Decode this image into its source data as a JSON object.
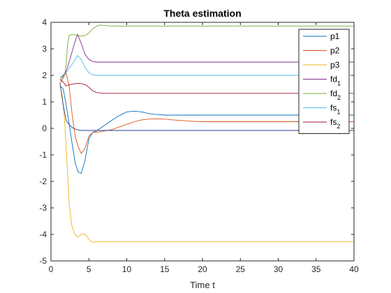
{
  "chart_data": {
    "type": "line",
    "title": "Theta estimation",
    "xlabel": "Time t",
    "ylabel": "",
    "xlim": [
      0,
      40
    ],
    "ylim": [
      -5,
      4
    ],
    "xticks": [
      0,
      5,
      10,
      15,
      20,
      25,
      30,
      35,
      40
    ],
    "yticks": [
      -5,
      -4,
      -3,
      -2,
      -1,
      0,
      1,
      2,
      3,
      4
    ],
    "grid": false,
    "legend_position": "top-right",
    "series": [
      {
        "name": "p1",
        "label_main": "p1",
        "label_sub": "",
        "color": "#0072BD",
        "x": [
          1.2,
          1.6,
          2.0,
          2.4,
          2.8,
          3.2,
          3.6,
          4.0,
          4.5,
          5.0,
          5.5,
          6.0,
          6.5,
          7.0,
          8.0,
          9.0,
          10.0,
          11.0,
          12.0,
          13.0,
          14.0,
          15.0,
          17.0,
          20.0,
          25.0,
          30.0,
          35.0,
          40.0
        ],
        "y": [
          1.6,
          1.5,
          0.9,
          0.2,
          -0.6,
          -1.3,
          -1.65,
          -1.7,
          -1.2,
          -0.4,
          -0.15,
          -0.1,
          0.0,
          0.1,
          0.3,
          0.48,
          0.62,
          0.65,
          0.62,
          0.55,
          0.52,
          0.5,
          0.5,
          0.5,
          0.5,
          0.5,
          0.5,
          0.5
        ]
      },
      {
        "name": "p2",
        "label_main": "p2",
        "label_sub": "",
        "color": "#D95319",
        "x": [
          1.2,
          1.6,
          2.0,
          2.4,
          2.8,
          3.2,
          3.6,
          4.0,
          4.5,
          5.0,
          5.5,
          6.0,
          7.0,
          8.0,
          9.0,
          10.0,
          11.0,
          12.0,
          13.0,
          14.0,
          15.0,
          16.0,
          18.0,
          20.0,
          25.0,
          30.0,
          35.0,
          40.0
        ],
        "y": [
          1.7,
          1.9,
          2.1,
          1.6,
          0.5,
          -0.3,
          -0.7,
          -0.95,
          -0.75,
          -0.3,
          -0.15,
          -0.15,
          -0.1,
          -0.05,
          0.05,
          0.15,
          0.25,
          0.32,
          0.35,
          0.36,
          0.35,
          0.32,
          0.28,
          0.25,
          0.25,
          0.25,
          0.25,
          0.25
        ]
      },
      {
        "name": "p3",
        "label_main": "p3",
        "label_sub": "",
        "color": "#EDB120",
        "x": [
          1.2,
          1.5,
          1.8,
          2.1,
          2.4,
          2.7,
          3.0,
          3.3,
          3.6,
          4.0,
          4.4,
          4.8,
          5.2,
          5.6,
          6.0,
          7.0,
          8.0,
          10.0,
          15.0,
          20.0,
          25.0,
          30.0,
          35.0,
          40.0
        ],
        "y": [
          1.6,
          1.2,
          0.3,
          -1.2,
          -2.8,
          -3.6,
          -3.9,
          -4.05,
          -4.1,
          -4.0,
          -3.98,
          -4.1,
          -4.25,
          -4.3,
          -4.28,
          -4.27,
          -4.27,
          -4.27,
          -4.27,
          -4.27,
          -4.27,
          -4.27,
          -4.27,
          -4.27
        ]
      },
      {
        "name": "fd_1",
        "label_main": "fd",
        "label_sub": "1",
        "color": "#7E2F8E",
        "x": [
          1.2,
          1.6,
          2.0,
          2.5,
          3.0,
          3.5,
          4.0,
          4.5,
          5.0,
          5.5,
          6.0,
          7.0,
          8.0,
          10.0,
          15.0,
          20.0,
          25.0,
          30.0,
          35.0,
          40.0
        ],
        "y": [
          1.9,
          2.0,
          2.15,
          2.6,
          3.1,
          3.55,
          3.2,
          2.8,
          2.6,
          2.52,
          2.5,
          2.5,
          2.5,
          2.5,
          2.5,
          2.5,
          2.5,
          2.5,
          2.5,
          2.5
        ]
      },
      {
        "name": "fd_2",
        "label_main": "fd",
        "label_sub": "2",
        "color": "#77AC30",
        "x": [
          1.2,
          1.5,
          1.8,
          2.0,
          2.2,
          2.4,
          2.8,
          3.2,
          3.6,
          4.0,
          4.5,
          5.0,
          5.5,
          6.0,
          6.5,
          7.0,
          8.0,
          10.0,
          15.0,
          20.0,
          25.0,
          30.0,
          35.0,
          40.0
        ],
        "y": [
          1.9,
          1.95,
          2.0,
          2.4,
          3.2,
          3.5,
          3.55,
          3.52,
          3.5,
          3.48,
          3.5,
          3.6,
          3.75,
          3.85,
          3.9,
          3.88,
          3.86,
          3.86,
          3.86,
          3.86,
          3.86,
          3.86,
          3.86,
          3.86
        ]
      },
      {
        "name": "fs_1",
        "label_main": "fs",
        "label_sub": "1",
        "color": "#4DBEEE",
        "x": [
          1.2,
          1.6,
          2.0,
          2.5,
          3.0,
          3.5,
          4.0,
          4.5,
          5.0,
          5.5,
          6.0,
          7.0,
          8.0,
          10.0,
          15.0,
          20.0,
          25.0,
          30.0,
          35.0,
          40.0
        ],
        "y": [
          1.8,
          1.95,
          2.1,
          2.3,
          2.5,
          2.75,
          2.6,
          2.3,
          2.1,
          2.02,
          2.0,
          2.0,
          2.0,
          2.0,
          2.0,
          2.0,
          2.0,
          2.0,
          2.0,
          2.0
        ]
      },
      {
        "name": "fs_2",
        "label_main": "fs",
        "label_sub": "2",
        "color": "#A2142F",
        "x": [
          1.2,
          1.6,
          2.0,
          2.5,
          3.0,
          3.5,
          4.0,
          4.5,
          5.0,
          5.5,
          6.0,
          7.0,
          8.0,
          10.0,
          15.0,
          20.0,
          25.0,
          30.0,
          35.0,
          40.0
        ],
        "y": [
          1.85,
          1.75,
          1.6,
          1.65,
          1.68,
          1.7,
          1.69,
          1.65,
          1.55,
          1.42,
          1.35,
          1.32,
          1.32,
          1.32,
          1.32,
          1.32,
          1.32,
          1.32,
          1.32,
          1.32
        ]
      },
      {
        "name": "",
        "label_main": "",
        "label_sub": "",
        "color": "#2c3e8c",
        "x": [
          1.2,
          1.6,
          2.0,
          2.5,
          3.0,
          3.5,
          4.0,
          4.5,
          5.0,
          5.5,
          6.0,
          7.0,
          8.0,
          10.0,
          15.0,
          20.0,
          25.0,
          30.0,
          35.0,
          40.0
        ],
        "y": [
          1.7,
          0.9,
          0.3,
          0.1,
          0.0,
          -0.05,
          -0.08,
          -0.08,
          -0.08,
          -0.08,
          -0.08,
          -0.08,
          -0.08,
          -0.08,
          -0.08,
          -0.08,
          -0.08,
          -0.08,
          -0.08,
          -0.08
        ]
      }
    ]
  }
}
